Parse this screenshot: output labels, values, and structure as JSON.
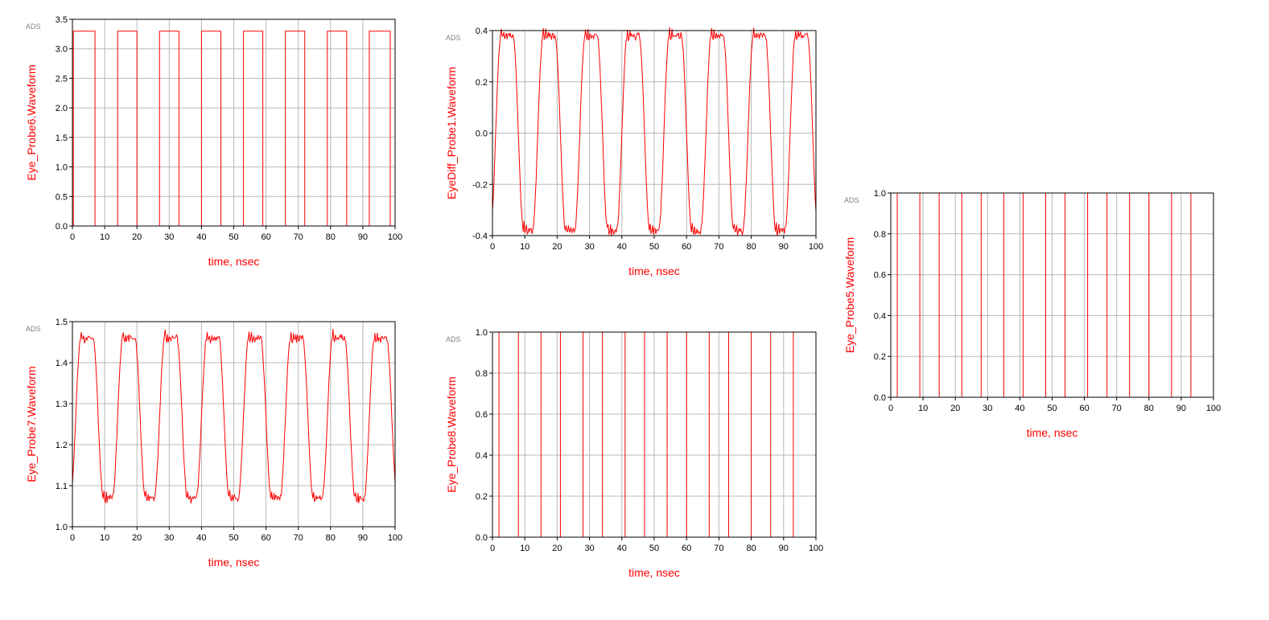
{
  "brand_label": "ADS",
  "colors": {
    "trace": "#ff0000",
    "label": "#ff0000",
    "grid": "#b8b8b8",
    "frame": "#000000"
  },
  "chart_data": [
    {
      "id": "probe6",
      "type": "line",
      "title": "",
      "xlabel": "time, nsec",
      "ylabel": "Eye_Probe6.Waveform",
      "xlim": [
        0,
        100
      ],
      "ylim": [
        0,
        3.5
      ],
      "xticks": [
        "0",
        "10",
        "20",
        "30",
        "40",
        "50",
        "60",
        "70",
        "80",
        "90",
        "100"
      ],
      "yticks": [
        "0.0",
        "0.5",
        "1.0",
        "1.5",
        "2.0",
        "2.5",
        "3.0",
        "3.5"
      ],
      "grid": true,
      "style": "digital",
      "low": 0.0,
      "high": 3.3,
      "high_intervals": [
        [
          0.3,
          7
        ],
        [
          14,
          20
        ],
        [
          27,
          33
        ],
        [
          40,
          46
        ],
        [
          53,
          59
        ],
        [
          66,
          72
        ],
        [
          79,
          85
        ],
        [
          92,
          98.5
        ]
      ]
    },
    {
      "id": "eyediff_probe1",
      "type": "line",
      "title": "",
      "xlabel": "time, nsec",
      "ylabel": "EyeDiff_Probe1.Waveform",
      "xlim": [
        0,
        100
      ],
      "ylim": [
        -0.4,
        0.4
      ],
      "xticks": [
        "0",
        "10",
        "20",
        "30",
        "40",
        "50",
        "60",
        "70",
        "80",
        "90",
        "100"
      ],
      "yticks": [
        "-0.4",
        "-0.2",
        "0.0",
        "0.2",
        "0.4"
      ],
      "grid": true,
      "style": "analog",
      "low": -0.38,
      "high": 0.38,
      "ripple": 0.02,
      "high_intervals": [
        [
          1,
          8
        ],
        [
          14,
          21
        ],
        [
          27,
          34
        ],
        [
          40,
          47
        ],
        [
          53,
          60
        ],
        [
          66,
          73
        ],
        [
          79,
          86
        ],
        [
          92,
          99
        ]
      ]
    },
    {
      "id": "probe5",
      "type": "line",
      "title": "",
      "xlabel": "time, nsec",
      "ylabel": "Eye_Probe5.Waveform",
      "xlim": [
        0,
        100
      ],
      "ylim": [
        0,
        1.0
      ],
      "xticks": [
        "0",
        "10",
        "20",
        "30",
        "40",
        "50",
        "60",
        "70",
        "80",
        "90",
        "100"
      ],
      "yticks": [
        "0.0",
        "0.2",
        "0.4",
        "0.6",
        "0.8",
        "1.0"
      ],
      "grid": true,
      "style": "digital",
      "low": 0.0,
      "high": 1.0,
      "high_intervals": [
        [
          2,
          9
        ],
        [
          15,
          22
        ],
        [
          28,
          35
        ],
        [
          41,
          48
        ],
        [
          54,
          61
        ],
        [
          67,
          74
        ],
        [
          80,
          87
        ],
        [
          93,
          100
        ]
      ]
    },
    {
      "id": "probe7",
      "type": "line",
      "title": "",
      "xlabel": "time, nsec",
      "ylabel": "Eye_Probe7.Waveform",
      "xlim": [
        0,
        100
      ],
      "ylim": [
        1.0,
        1.5
      ],
      "xticks": [
        "0",
        "10",
        "20",
        "30",
        "40",
        "50",
        "60",
        "70",
        "80",
        "90",
        "100"
      ],
      "yticks": [
        "1.0",
        "1.1",
        "1.2",
        "1.3",
        "1.4",
        "1.5"
      ],
      "grid": true,
      "style": "analog",
      "low": 1.07,
      "high": 1.46,
      "ripple": 0.012,
      "high_intervals": [
        [
          1,
          8
        ],
        [
          14,
          21
        ],
        [
          27,
          34
        ],
        [
          40,
          47
        ],
        [
          53,
          60
        ],
        [
          66,
          73
        ],
        [
          79,
          86
        ],
        [
          92,
          99
        ]
      ]
    },
    {
      "id": "probe8",
      "type": "line",
      "title": "",
      "xlabel": "time, nsec",
      "ylabel": "Eye_Probe8.Waveform",
      "xlim": [
        0,
        100
      ],
      "ylim": [
        0,
        1.0
      ],
      "xticks": [
        "0",
        "10",
        "20",
        "30",
        "40",
        "50",
        "60",
        "70",
        "80",
        "90",
        "100"
      ],
      "yticks": [
        "0.0",
        "0.2",
        "0.4",
        "0.6",
        "0.8",
        "1.0"
      ],
      "grid": true,
      "style": "digital",
      "low": 0.0,
      "high": 1.0,
      "high_intervals": [
        [
          2,
          8
        ],
        [
          15,
          21
        ],
        [
          28,
          34
        ],
        [
          41,
          47
        ],
        [
          54,
          60
        ],
        [
          67,
          73
        ],
        [
          80,
          86
        ],
        [
          93,
          100
        ]
      ]
    }
  ]
}
